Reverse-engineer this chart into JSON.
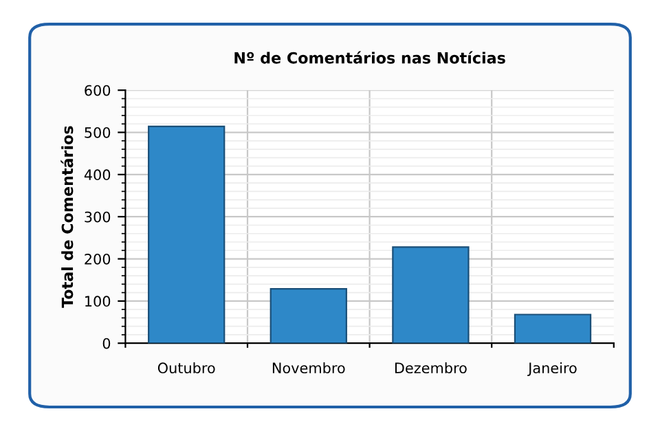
{
  "chart_data": {
    "type": "bar",
    "title": "Nº de Comentários nas Notícias",
    "ylabel": "Total de Comentários",
    "categories": [
      "Outubro",
      "Novembro",
      "Dezembro",
      "Janeiro"
    ],
    "values": [
      514,
      129,
      228,
      68
    ],
    "color": "#2e88c8",
    "ylim": [
      0,
      600
    ],
    "yticks": [
      0,
      100,
      200,
      300,
      400,
      500,
      600
    ],
    "grid": true
  }
}
